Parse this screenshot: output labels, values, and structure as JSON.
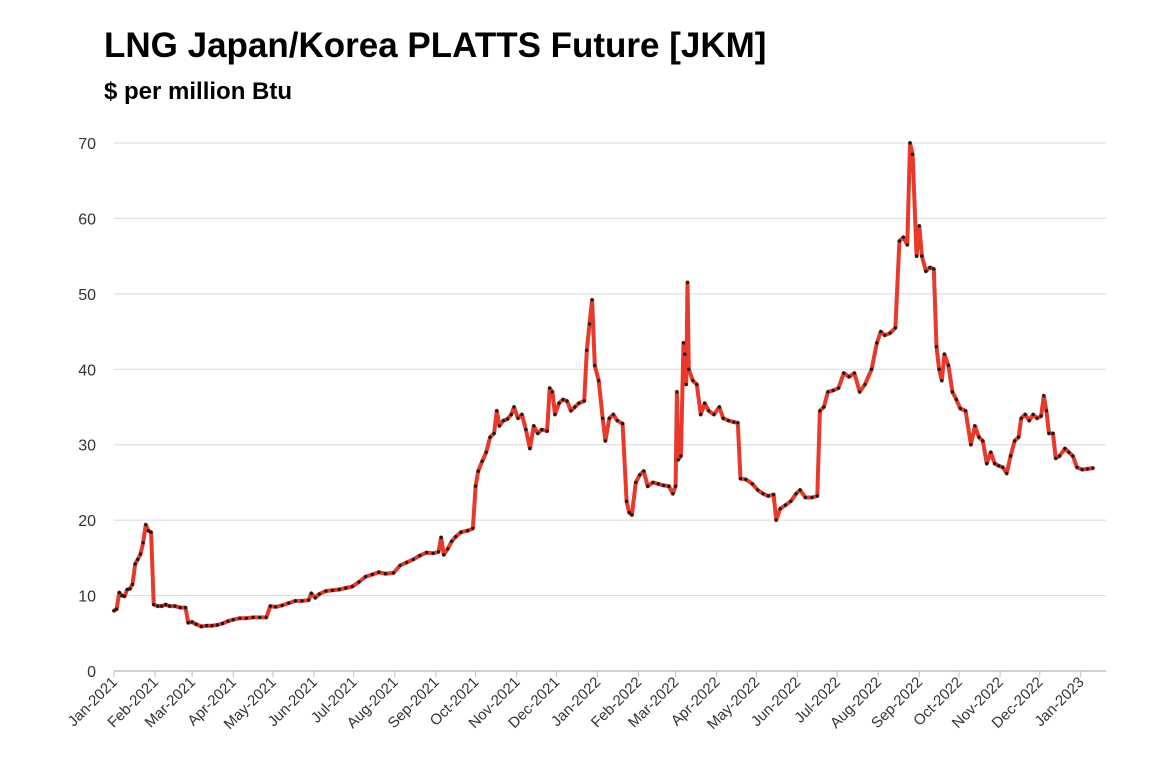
{
  "chart_data": {
    "type": "line",
    "title": "LNG Japan/Korea PLATTS Future [JKM]",
    "subtitle": "$ per million Btu",
    "xlabel": "",
    "ylabel": "",
    "ylim": [
      0,
      70
    ],
    "yticks": [
      0,
      10,
      20,
      30,
      40,
      50,
      60,
      70
    ],
    "xticks": [
      "Jan-2021",
      "Feb-2021",
      "Mar-2021",
      "Apr-2021",
      "May-2021",
      "Jun-2021",
      "Jul-2021",
      "Aug-2021",
      "Sep-2021",
      "Oct-2021",
      "Nov-2021",
      "Dec-2021",
      "Jan-2022",
      "Feb-2022",
      "Mar-2022",
      "Apr-2022",
      "May-2022",
      "Jun-2022",
      "Jul-2022",
      "Aug-2022",
      "Sep-2022",
      "Oct-2022",
      "Nov-2022",
      "Dec-2022",
      "Jan-2023"
    ],
    "xlim": [
      "2021-01-01",
      "2023-01-20"
    ],
    "grid": true,
    "legend": "none",
    "colors": {
      "line": "#e8392a",
      "marker": "#1a1a1a",
      "grid": "#d9d9d9",
      "axis": "#bfbfbf"
    },
    "series": [
      {
        "values": [
          [
            "2021-01-01",
            8.0
          ],
          [
            "2021-01-03",
            8.2
          ],
          [
            "2021-01-05",
            10.4
          ],
          [
            "2021-01-07",
            10.0
          ],
          [
            "2021-01-09",
            9.9
          ],
          [
            "2021-01-11",
            10.8
          ],
          [
            "2021-01-13",
            10.9
          ],
          [
            "2021-01-15",
            11.5
          ],
          [
            "2021-01-17",
            14.2
          ],
          [
            "2021-01-19",
            14.8
          ],
          [
            "2021-01-21",
            15.5
          ],
          [
            "2021-01-23",
            17.0
          ],
          [
            "2021-01-25",
            19.4
          ],
          [
            "2021-01-27",
            18.6
          ],
          [
            "2021-01-29",
            18.4
          ],
          [
            "2021-01-31",
            8.8
          ],
          [
            "2021-02-03",
            8.6
          ],
          [
            "2021-02-06",
            8.6
          ],
          [
            "2021-02-09",
            8.8
          ],
          [
            "2021-02-12",
            8.6
          ],
          [
            "2021-02-16",
            8.6
          ],
          [
            "2021-02-20",
            8.4
          ],
          [
            "2021-02-24",
            8.4
          ],
          [
            "2021-02-26",
            6.4
          ],
          [
            "2021-03-01",
            6.5
          ],
          [
            "2021-03-04",
            6.2
          ],
          [
            "2021-03-08",
            5.9
          ],
          [
            "2021-03-12",
            6.0
          ],
          [
            "2021-03-16",
            6.0
          ],
          [
            "2021-03-20",
            6.1
          ],
          [
            "2021-03-24",
            6.3
          ],
          [
            "2021-03-28",
            6.6
          ],
          [
            "2021-04-01",
            6.8
          ],
          [
            "2021-04-06",
            7.0
          ],
          [
            "2021-04-11",
            7.0
          ],
          [
            "2021-04-16",
            7.1
          ],
          [
            "2021-04-21",
            7.1
          ],
          [
            "2021-04-26",
            7.1
          ],
          [
            "2021-04-29",
            8.6
          ],
          [
            "2021-05-03",
            8.5
          ],
          [
            "2021-05-08",
            8.7
          ],
          [
            "2021-05-13",
            9.0
          ],
          [
            "2021-05-18",
            9.3
          ],
          [
            "2021-05-23",
            9.3
          ],
          [
            "2021-05-28",
            9.4
          ],
          [
            "2021-05-30",
            10.3
          ],
          [
            "2021-06-02",
            9.7
          ],
          [
            "2021-06-05",
            10.2
          ],
          [
            "2021-06-10",
            10.6
          ],
          [
            "2021-06-15",
            10.7
          ],
          [
            "2021-06-20",
            10.8
          ],
          [
            "2021-06-25",
            11.0
          ],
          [
            "2021-06-30",
            11.2
          ],
          [
            "2021-07-05",
            11.8
          ],
          [
            "2021-07-10",
            12.5
          ],
          [
            "2021-07-15",
            12.8
          ],
          [
            "2021-07-20",
            13.1
          ],
          [
            "2021-07-25",
            12.9
          ],
          [
            "2021-07-31",
            13.0
          ],
          [
            "2021-08-05",
            14.0
          ],
          [
            "2021-08-10",
            14.4
          ],
          [
            "2021-08-15",
            14.8
          ],
          [
            "2021-08-20",
            15.3
          ],
          [
            "2021-08-25",
            15.7
          ],
          [
            "2021-08-30",
            15.6
          ],
          [
            "2021-09-03",
            15.8
          ],
          [
            "2021-09-05",
            17.7
          ],
          [
            "2021-09-07",
            15.4
          ],
          [
            "2021-09-10",
            16.2
          ],
          [
            "2021-09-13",
            17.2
          ],
          [
            "2021-09-16",
            17.8
          ],
          [
            "2021-09-20",
            18.4
          ],
          [
            "2021-09-25",
            18.6
          ],
          [
            "2021-09-29",
            18.9
          ],
          [
            "2021-10-01",
            24.5
          ],
          [
            "2021-10-03",
            26.5
          ],
          [
            "2021-10-06",
            27.8
          ],
          [
            "2021-10-09",
            29.0
          ],
          [
            "2021-10-12",
            31.0
          ],
          [
            "2021-10-15",
            31.5
          ],
          [
            "2021-10-17",
            34.5
          ],
          [
            "2021-10-19",
            32.5
          ],
          [
            "2021-10-22",
            33.2
          ],
          [
            "2021-10-25",
            33.4
          ],
          [
            "2021-10-28",
            34.0
          ],
          [
            "2021-10-30",
            35.0
          ],
          [
            "2021-11-02",
            33.5
          ],
          [
            "2021-11-05",
            34.0
          ],
          [
            "2021-11-08",
            32.0
          ],
          [
            "2021-11-11",
            29.5
          ],
          [
            "2021-11-14",
            32.5
          ],
          [
            "2021-11-17",
            31.5
          ],
          [
            "2021-11-20",
            32.0
          ],
          [
            "2021-11-24",
            31.8
          ],
          [
            "2021-11-26",
            37.5
          ],
          [
            "2021-11-28",
            37.0
          ],
          [
            "2021-11-30",
            34.0
          ],
          [
            "2021-12-03",
            35.5
          ],
          [
            "2021-12-06",
            36.0
          ],
          [
            "2021-12-09",
            35.8
          ],
          [
            "2021-12-12",
            34.5
          ],
          [
            "2021-12-15",
            35.0
          ],
          [
            "2021-12-18",
            35.5
          ],
          [
            "2021-12-22",
            35.8
          ],
          [
            "2021-12-24",
            42.5
          ],
          [
            "2021-12-26",
            46.0
          ],
          [
            "2021-12-28",
            49.2
          ],
          [
            "2021-12-30",
            40.5
          ],
          [
            "2022-01-02",
            38.5
          ],
          [
            "2022-01-05",
            33.5
          ],
          [
            "2022-01-07",
            30.5
          ],
          [
            "2022-01-10",
            33.5
          ],
          [
            "2022-01-13",
            34.0
          ],
          [
            "2022-01-16",
            33.2
          ],
          [
            "2022-01-20",
            32.8
          ],
          [
            "2022-01-23",
            22.5
          ],
          [
            "2022-01-25",
            21.0
          ],
          [
            "2022-01-27",
            20.7
          ],
          [
            "2022-01-30",
            25.0
          ],
          [
            "2022-02-02",
            26.0
          ],
          [
            "2022-02-05",
            26.5
          ],
          [
            "2022-02-08",
            24.5
          ],
          [
            "2022-02-12",
            25.0
          ],
          [
            "2022-02-16",
            24.8
          ],
          [
            "2022-02-20",
            24.6
          ],
          [
            "2022-02-24",
            24.5
          ],
          [
            "2022-02-27",
            23.5
          ],
          [
            "2022-03-01",
            24.5
          ],
          [
            "2022-03-02",
            37.0
          ],
          [
            "2022-03-03",
            28.0
          ],
          [
            "2022-03-05",
            28.5
          ],
          [
            "2022-03-07",
            43.5
          ],
          [
            "2022-03-08",
            42.0
          ],
          [
            "2022-03-09",
            38.0
          ],
          [
            "2022-03-10",
            51.5
          ],
          [
            "2022-03-11",
            40.0
          ],
          [
            "2022-03-14",
            38.5
          ],
          [
            "2022-03-17",
            38.0
          ],
          [
            "2022-03-20",
            34.0
          ],
          [
            "2022-03-23",
            35.5
          ],
          [
            "2022-03-26",
            34.5
          ],
          [
            "2022-03-30",
            34.0
          ],
          [
            "2022-04-03",
            35.0
          ],
          [
            "2022-04-06",
            33.5
          ],
          [
            "2022-04-10",
            33.2
          ],
          [
            "2022-04-14",
            33.0
          ],
          [
            "2022-04-17",
            32.9
          ],
          [
            "2022-04-19",
            25.5
          ],
          [
            "2022-04-23",
            25.4
          ],
          [
            "2022-04-28",
            24.8
          ],
          [
            "2022-05-02",
            24.0
          ],
          [
            "2022-05-06",
            23.5
          ],
          [
            "2022-05-10",
            23.2
          ],
          [
            "2022-05-14",
            23.4
          ],
          [
            "2022-05-16",
            20.0
          ],
          [
            "2022-05-19",
            21.5
          ],
          [
            "2022-05-23",
            22.0
          ],
          [
            "2022-05-27",
            22.5
          ],
          [
            "2022-05-31",
            23.5
          ],
          [
            "2022-06-03",
            24.0
          ],
          [
            "2022-06-07",
            23.0
          ],
          [
            "2022-06-12",
            23.0
          ],
          [
            "2022-06-16",
            23.2
          ],
          [
            "2022-06-18",
            34.5
          ],
          [
            "2022-06-21",
            35.0
          ],
          [
            "2022-06-24",
            37.0
          ],
          [
            "2022-06-28",
            37.2
          ],
          [
            "2022-07-02",
            37.5
          ],
          [
            "2022-07-06",
            39.5
          ],
          [
            "2022-07-10",
            39.0
          ],
          [
            "2022-07-14",
            39.5
          ],
          [
            "2022-07-18",
            37.0
          ],
          [
            "2022-07-22",
            38.0
          ],
          [
            "2022-07-27",
            40.0
          ],
          [
            "2022-07-31",
            43.5
          ],
          [
            "2022-08-03",
            45.0
          ],
          [
            "2022-08-06",
            44.5
          ],
          [
            "2022-08-10",
            44.8
          ],
          [
            "2022-08-14",
            45.5
          ],
          [
            "2022-08-17",
            57.0
          ],
          [
            "2022-08-20",
            57.5
          ],
          [
            "2022-08-23",
            56.5
          ],
          [
            "2022-08-25",
            70.0
          ],
          [
            "2022-08-27",
            68.5
          ],
          [
            "2022-08-30",
            55.0
          ],
          [
            "2022-09-01",
            59.0
          ],
          [
            "2022-09-03",
            55.0
          ],
          [
            "2022-09-06",
            53.0
          ],
          [
            "2022-09-09",
            53.5
          ],
          [
            "2022-09-12",
            53.3
          ],
          [
            "2022-09-14",
            43.0
          ],
          [
            "2022-09-16",
            40.0
          ],
          [
            "2022-09-18",
            38.5
          ],
          [
            "2022-09-20",
            42.0
          ],
          [
            "2022-09-23",
            40.5
          ],
          [
            "2022-09-26",
            37.0
          ],
          [
            "2022-09-29",
            36.0
          ],
          [
            "2022-10-02",
            34.8
          ],
          [
            "2022-10-06",
            34.5
          ],
          [
            "2022-10-10",
            30.0
          ],
          [
            "2022-10-13",
            32.5
          ],
          [
            "2022-10-16",
            31.0
          ],
          [
            "2022-10-19",
            30.5
          ],
          [
            "2022-10-22",
            27.5
          ],
          [
            "2022-10-25",
            29.0
          ],
          [
            "2022-10-28",
            27.5
          ],
          [
            "2022-10-31",
            27.2
          ],
          [
            "2022-11-03",
            27.0
          ],
          [
            "2022-11-06",
            26.2
          ],
          [
            "2022-11-09",
            28.5
          ],
          [
            "2022-11-12",
            30.5
          ],
          [
            "2022-11-15",
            31.0
          ],
          [
            "2022-11-17",
            33.5
          ],
          [
            "2022-11-20",
            34.0
          ],
          [
            "2022-11-23",
            33.2
          ],
          [
            "2022-11-26",
            34.0
          ],
          [
            "2022-11-29",
            33.5
          ],
          [
            "2022-12-02",
            33.8
          ],
          [
            "2022-12-04",
            36.5
          ],
          [
            "2022-12-06",
            34.5
          ],
          [
            "2022-12-08",
            31.5
          ],
          [
            "2022-12-11",
            31.5
          ],
          [
            "2022-12-13",
            28.2
          ],
          [
            "2022-12-16",
            28.5
          ],
          [
            "2022-12-20",
            29.5
          ],
          [
            "2022-12-23",
            29.0
          ],
          [
            "2022-12-26",
            28.5
          ],
          [
            "2022-12-29",
            27.0
          ],
          [
            "2023-01-02",
            26.7
          ],
          [
            "2023-01-06",
            26.8
          ],
          [
            "2023-01-10",
            26.9
          ]
        ]
      }
    ]
  }
}
